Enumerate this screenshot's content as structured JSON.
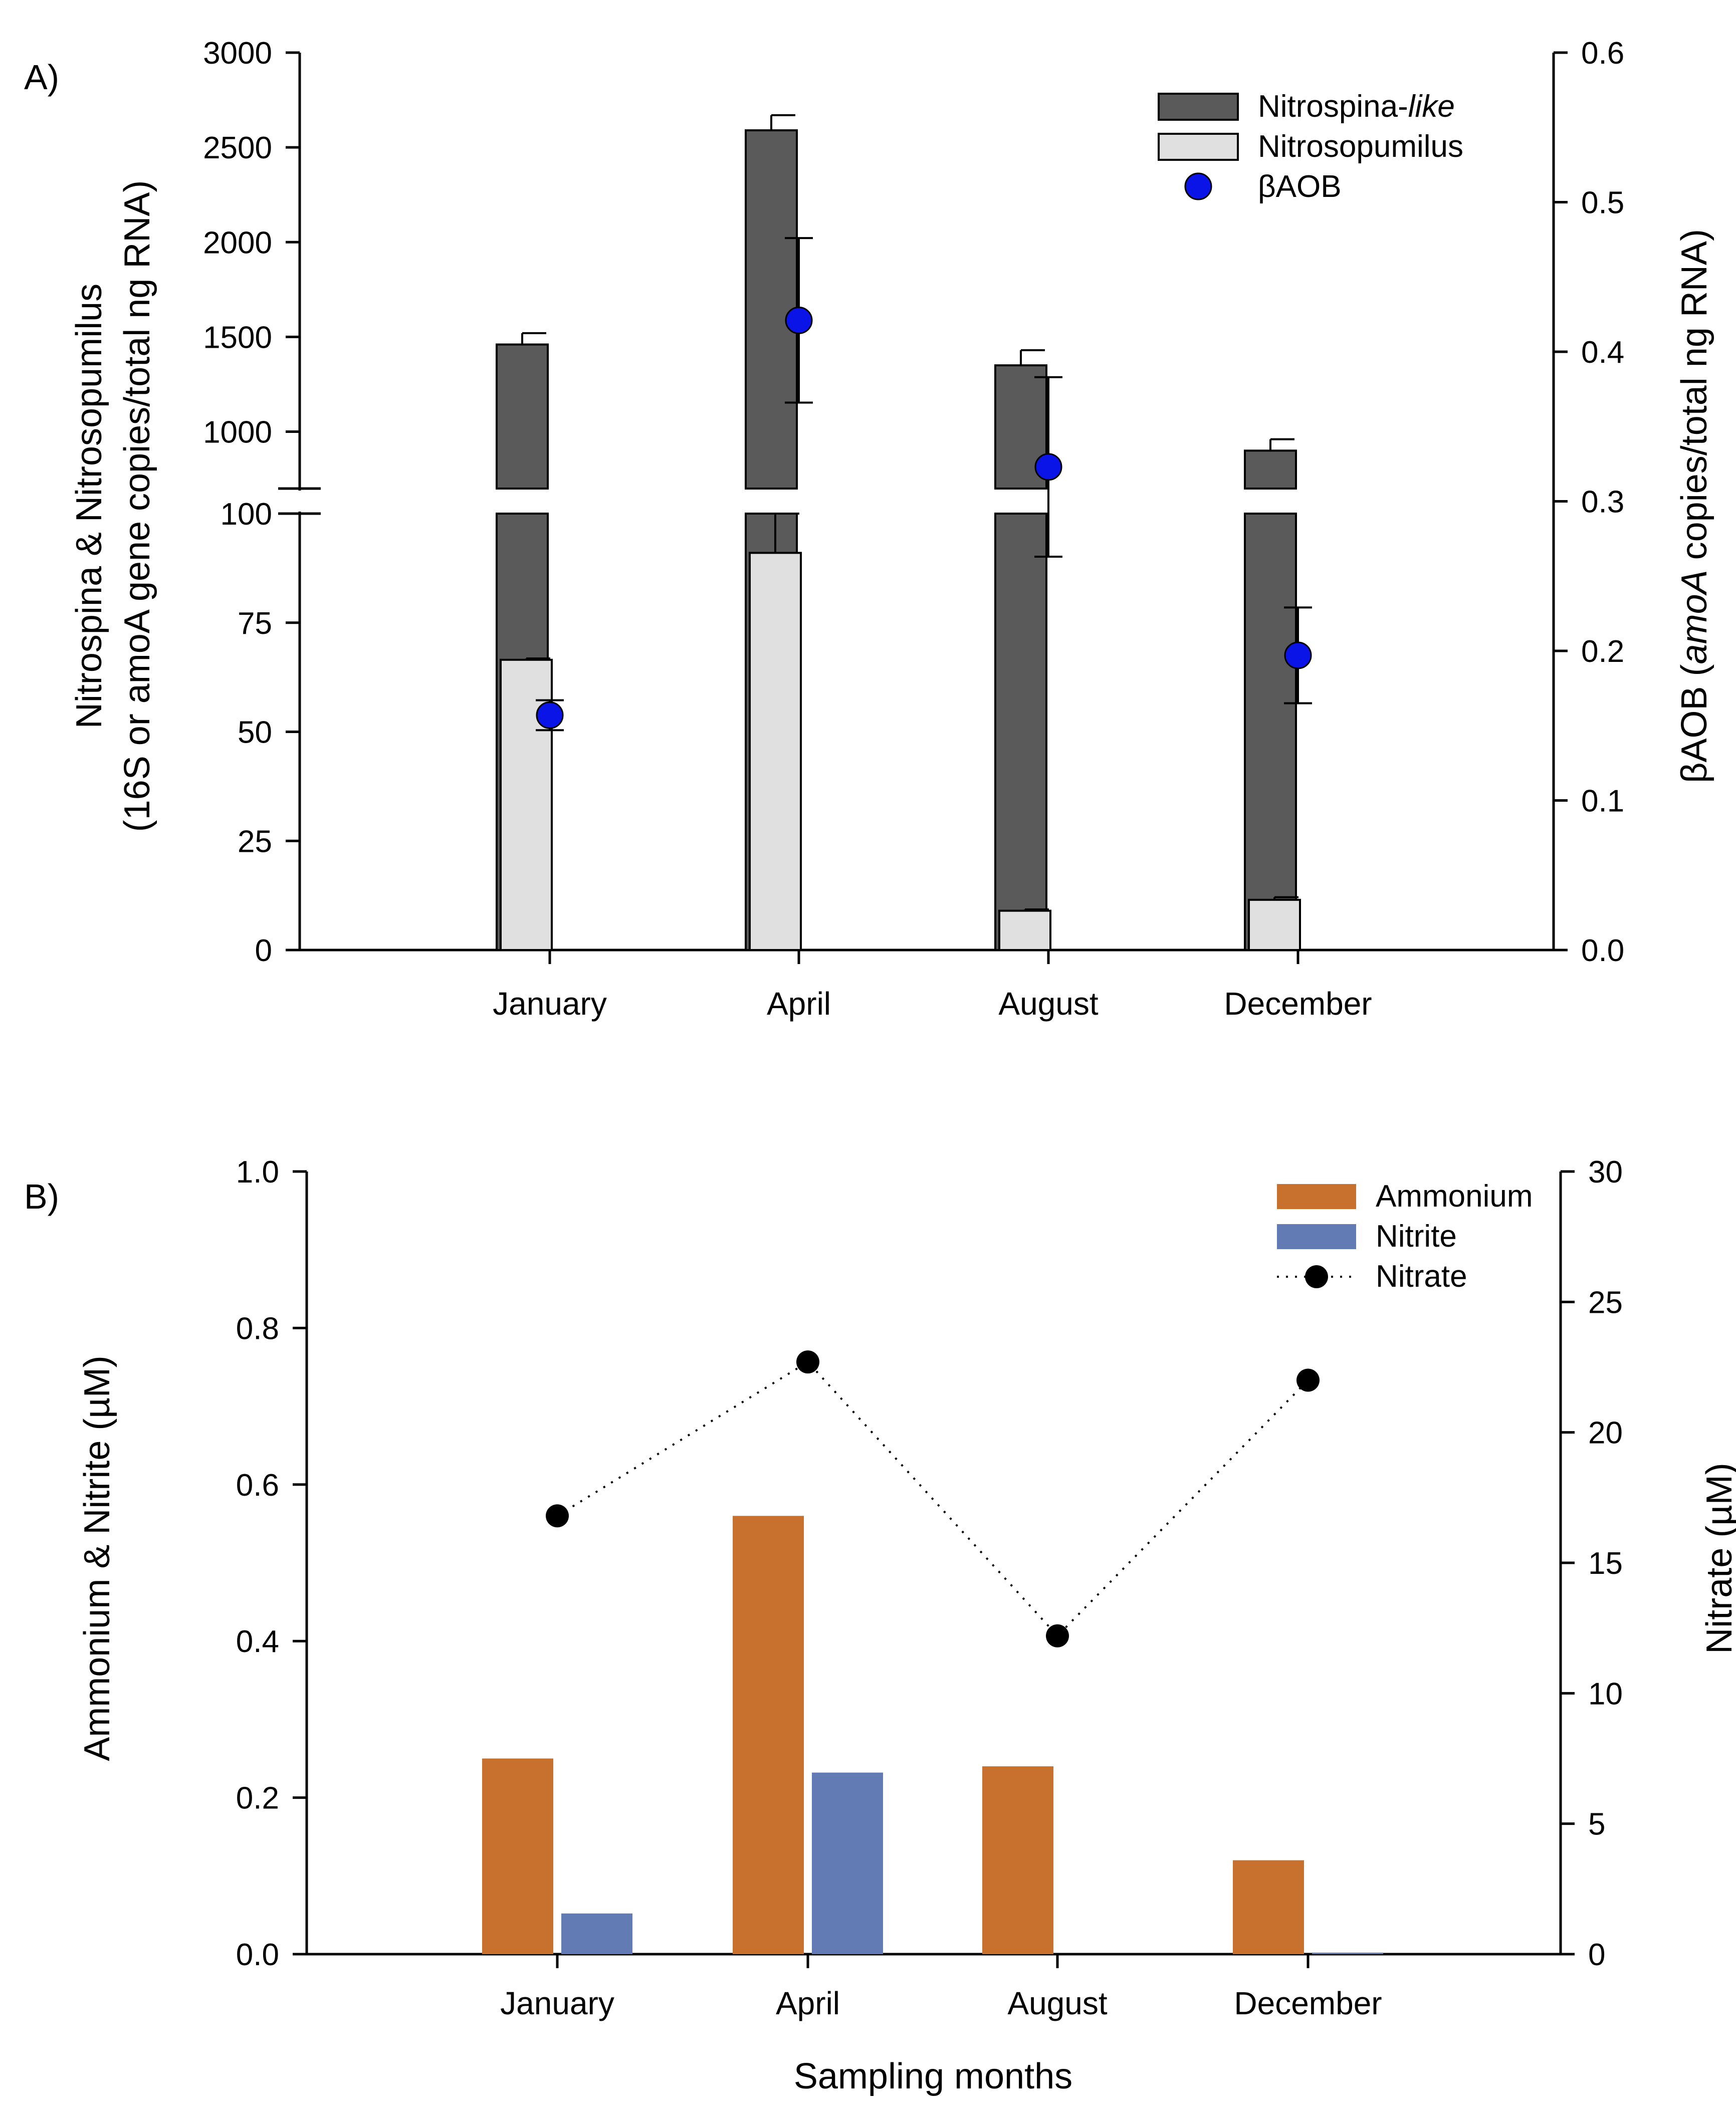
{
  "chart_data": [
    {
      "panel": "A)",
      "type": "bar",
      "categories": [
        "January",
        "April",
        "August",
        "December"
      ],
      "ylabel_left_line1": "Nitrospina & Nitrosopumilus",
      "ylabel_left_line2": "(16S or amoA gene copies/total ng RNA)",
      "ylabel_right_prefix": "βAOB (",
      "ylabel_right_italic": "amoA",
      "ylabel_right_suffix": " copies/total ng RNA)",
      "y_left_broken_axis": {
        "lower_range": [
          0,
          100
        ],
        "upper_range": [
          700,
          3000
        ],
        "lower_ticks": [
          "0",
          "25",
          "50",
          "75",
          "100"
        ],
        "upper_ticks": [
          "1000",
          "1500",
          "2000",
          "2500",
          "3000"
        ]
      },
      "y_right_range": [
        0,
        0.6
      ],
      "y_right_ticks": [
        "0.0",
        "0.1",
        "0.2",
        "0.3",
        "0.4",
        "0.5",
        "0.6"
      ],
      "series": [
        {
          "name_prefix": "Nitrospina-",
          "name_italic": "like",
          "type": "bar",
          "axis": "left",
          "color": "#5a5a5a",
          "values": [
            1460,
            2590,
            1350,
            900
          ],
          "errors": [
            60,
            80,
            80,
            60
          ]
        },
        {
          "name": "Nitrosopumilus",
          "type": "bar",
          "axis": "left",
          "color": "#e0e0e0",
          "values": [
            66.5,
            91,
            9,
            11.5
          ],
          "errors": [
            0.3,
            9,
            0.3,
            0.6
          ]
        },
        {
          "name": "βAOB",
          "type": "scatter",
          "axis": "right",
          "color": "#0a14e6",
          "values": [
            0.157,
            0.421,
            0.323,
            0.197
          ],
          "errors": [
            0.01,
            0.055,
            0.06,
            0.032
          ]
        }
      ]
    },
    {
      "panel": "B)",
      "type": "bar",
      "categories": [
        "January",
        "April",
        "August",
        "December"
      ],
      "xlabel": "Sampling months",
      "ylabel_left": "Ammonium & Nitrite (µM)",
      "ylabel_right": "Nitrate (µM)",
      "y_left_range": [
        0,
        1.0
      ],
      "y_left_ticks": [
        "0.0",
        "0.2",
        "0.4",
        "0.6",
        "0.8",
        "1.0"
      ],
      "y_right_range": [
        0,
        30
      ],
      "y_right_ticks": [
        "0",
        "5",
        "10",
        "15",
        "20",
        "25",
        "30"
      ],
      "series": [
        {
          "name": "Ammonium",
          "type": "bar",
          "axis": "left",
          "color": "#c8702e",
          "values": [
            0.25,
            0.56,
            0.24,
            0.12
          ]
        },
        {
          "name": "Nitrite",
          "type": "bar",
          "axis": "left",
          "color": "#627bb5",
          "values": [
            0.052,
            0.232,
            0.0,
            0.002
          ]
        },
        {
          "name": "Nitrate",
          "type": "line",
          "axis": "right",
          "color": "#000000",
          "values": [
            16.8,
            22.7,
            12.2,
            22.0
          ]
        }
      ]
    }
  ]
}
